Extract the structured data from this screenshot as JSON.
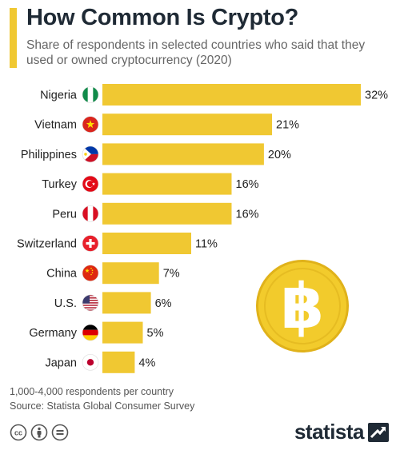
{
  "header": {
    "title": "How Common Is Crypto?",
    "subtitle": "Share of respondents in selected countries who said that they used or owned cryptocurrency (2020)"
  },
  "colors": {
    "accent": "#F0C832",
    "bar": "#F0C832",
    "coin": "#F2CB2C",
    "coin_dark": "#E0B21A"
  },
  "chart_data": {
    "type": "bar",
    "orientation": "horizontal",
    "categories": [
      "Nigeria",
      "Vietnam",
      "Philippines",
      "Turkey",
      "Peru",
      "Switzerland",
      "China",
      "U.S.",
      "Germany",
      "Japan"
    ],
    "values": [
      32,
      21,
      20,
      16,
      16,
      11,
      7,
      6,
      5,
      4
    ],
    "value_labels": [
      "32%",
      "21%",
      "20%",
      "16%",
      "16%",
      "11%",
      "7%",
      "6%",
      "5%",
      "4%"
    ],
    "flags": [
      "nigeria-flag-icon",
      "vietnam-flag-icon",
      "philippines-flag-icon",
      "turkey-flag-icon",
      "peru-flag-icon",
      "switzerland-flag-icon",
      "china-flag-icon",
      "us-flag-icon",
      "germany-flag-icon",
      "japan-flag-icon"
    ],
    "xlim": [
      0,
      32
    ],
    "grid": false,
    "legend": "none"
  },
  "footer": {
    "note": "1,000-4,000 respondents per country",
    "source": "Source: Statista Global Consumer Survey",
    "license_icons": [
      "cc-icon",
      "attribution-icon",
      "no-derivatives-icon"
    ],
    "brand": "statista"
  }
}
